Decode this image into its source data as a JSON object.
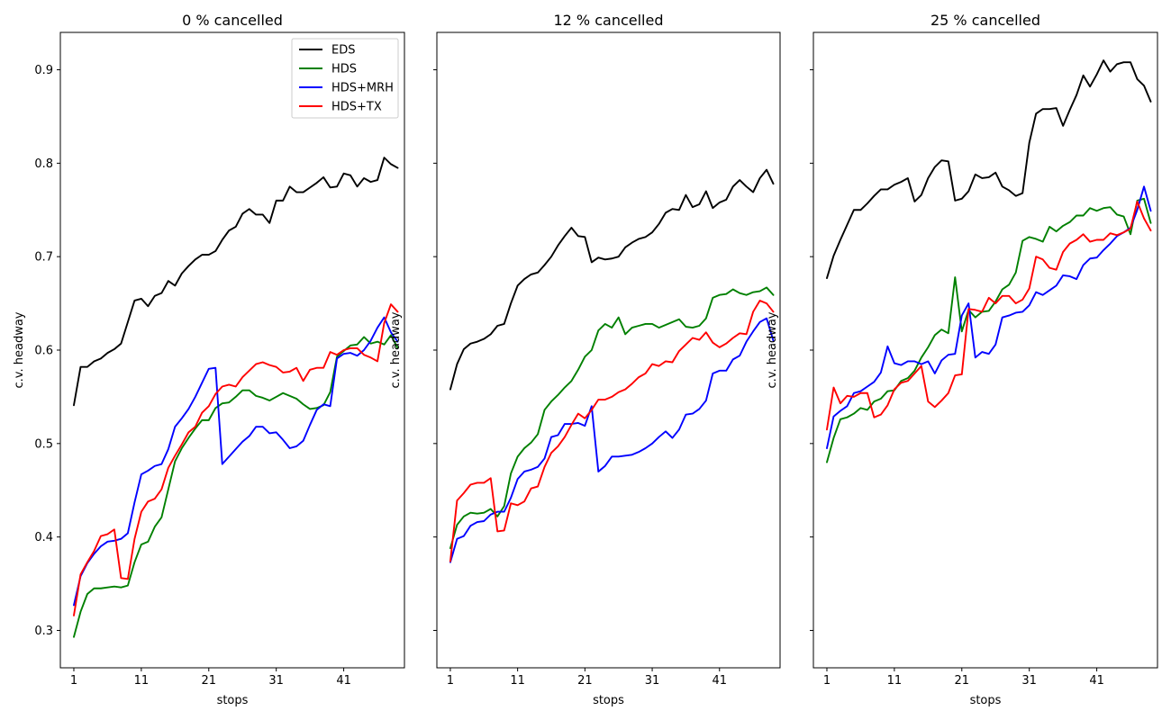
{
  "chart_data": [
    {
      "type": "line",
      "title": "0 % cancelled",
      "xlabel": "stops",
      "ylabel": "c.v. headway",
      "xlim": [
        -1,
        50
      ],
      "ylim": [
        0.26,
        0.94
      ],
      "xticks": [
        1,
        11,
        21,
        31,
        41
      ],
      "yticks": [
        0.3,
        0.4,
        0.5,
        0.6,
        0.7,
        0.8,
        0.9
      ],
      "ytick_labels": [
        "0.3",
        "0.4",
        "0.5",
        "0.6",
        "0.7",
        "0.8",
        "0.9"
      ],
      "legend": {
        "position": "top-right"
      },
      "series": [
        {
          "name": "EDS",
          "color": "#000000",
          "values": [
            0.541,
            0.582,
            0.582,
            0.588,
            0.591,
            0.597,
            0.601,
            0.607,
            0.63,
            0.653,
            0.655,
            0.647,
            0.658,
            0.661,
            0.674,
            0.669,
            0.682,
            0.69,
            0.697,
            0.702,
            0.702,
            0.706,
            0.718,
            0.728,
            0.732,
            0.746,
            0.751,
            0.745,
            0.745,
            0.736,
            0.76,
            0.76,
            0.775,
            0.769,
            0.769,
            0.774,
            0.779,
            0.785,
            0.774,
            0.775,
            0.789,
            0.787,
            0.775,
            0.784,
            0.78,
            0.782,
            0.806,
            0.799,
            0.795
          ]
        },
        {
          "name": "HDS",
          "color": "#008000",
          "values": [
            0.293,
            0.32,
            0.339,
            0.345,
            0.345,
            0.346,
            0.347,
            0.346,
            0.348,
            0.373,
            0.392,
            0.395,
            0.411,
            0.421,
            0.451,
            0.481,
            0.495,
            0.506,
            0.516,
            0.525,
            0.525,
            0.538,
            0.543,
            0.544,
            0.55,
            0.557,
            0.557,
            0.551,
            0.549,
            0.546,
            0.55,
            0.554,
            0.551,
            0.548,
            0.542,
            0.537,
            0.538,
            0.541,
            0.555,
            0.593,
            0.599,
            0.605,
            0.606,
            0.614,
            0.607,
            0.609,
            0.606,
            0.616,
            0.602
          ]
        },
        {
          "name": "HDS+MRH",
          "color": "#0000ff",
          "values": [
            0.327,
            0.358,
            0.372,
            0.382,
            0.39,
            0.395,
            0.396,
            0.398,
            0.404,
            0.437,
            0.467,
            0.471,
            0.476,
            0.478,
            0.494,
            0.518,
            0.527,
            0.537,
            0.55,
            0.565,
            0.58,
            0.581,
            0.478,
            0.486,
            0.494,
            0.502,
            0.508,
            0.518,
            0.518,
            0.511,
            0.512,
            0.504,
            0.495,
            0.497,
            0.503,
            0.52,
            0.536,
            0.542,
            0.54,
            0.591,
            0.596,
            0.597,
            0.594,
            0.6,
            0.61,
            0.624,
            0.635,
            0.619,
            0.609
          ]
        },
        {
          "name": "HDS+TX",
          "color": "#ff0000",
          "values": [
            0.316,
            0.36,
            0.373,
            0.385,
            0.401,
            0.403,
            0.408,
            0.356,
            0.355,
            0.398,
            0.427,
            0.438,
            0.441,
            0.451,
            0.474,
            0.487,
            0.499,
            0.512,
            0.518,
            0.533,
            0.54,
            0.553,
            0.561,
            0.563,
            0.561,
            0.571,
            0.578,
            0.585,
            0.587,
            0.584,
            0.582,
            0.576,
            0.577,
            0.581,
            0.567,
            0.579,
            0.581,
            0.581,
            0.598,
            0.595,
            0.6,
            0.602,
            0.602,
            0.595,
            0.592,
            0.588,
            0.629,
            0.649,
            0.641
          ]
        }
      ]
    },
    {
      "type": "line",
      "title": "12 % cancelled",
      "xlabel": "stops",
      "ylabel": "c.v. headway",
      "xlim": [
        -1,
        50
      ],
      "ylim": [
        0.26,
        0.94
      ],
      "xticks": [
        1,
        11,
        21,
        31,
        41
      ],
      "yticks": [
        0.3,
        0.4,
        0.5,
        0.6,
        0.7,
        0.8,
        0.9
      ],
      "ytick_labels": [],
      "series": [
        {
          "name": "EDS",
          "color": "#000000",
          "values": [
            0.558,
            0.585,
            0.601,
            0.607,
            0.609,
            0.612,
            0.617,
            0.626,
            0.628,
            0.65,
            0.669,
            0.676,
            0.681,
            0.683,
            0.691,
            0.7,
            0.712,
            0.722,
            0.731,
            0.722,
            0.721,
            0.694,
            0.699,
            0.697,
            0.698,
            0.7,
            0.71,
            0.715,
            0.719,
            0.721,
            0.726,
            0.735,
            0.747,
            0.751,
            0.75,
            0.766,
            0.753,
            0.756,
            0.77,
            0.752,
            0.758,
            0.761,
            0.775,
            0.782,
            0.775,
            0.769,
            0.784,
            0.793,
            0.778
          ]
        },
        {
          "name": "HDS",
          "color": "#008000",
          "values": [
            0.388,
            0.413,
            0.422,
            0.426,
            0.425,
            0.426,
            0.43,
            0.422,
            0.433,
            0.468,
            0.486,
            0.495,
            0.501,
            0.51,
            0.536,
            0.545,
            0.552,
            0.56,
            0.567,
            0.579,
            0.593,
            0.6,
            0.621,
            0.628,
            0.624,
            0.635,
            0.617,
            0.624,
            0.626,
            0.628,
            0.628,
            0.624,
            0.627,
            0.63,
            0.633,
            0.625,
            0.624,
            0.626,
            0.634,
            0.656,
            0.659,
            0.66,
            0.665,
            0.661,
            0.659,
            0.662,
            0.663,
            0.667,
            0.659
          ]
        },
        {
          "name": "HDS+MRH",
          "color": "#0000ff",
          "values": [
            0.373,
            0.398,
            0.401,
            0.412,
            0.416,
            0.417,
            0.424,
            0.427,
            0.427,
            0.442,
            0.462,
            0.47,
            0.472,
            0.475,
            0.484,
            0.507,
            0.509,
            0.521,
            0.521,
            0.522,
            0.519,
            0.54,
            0.47,
            0.476,
            0.486,
            0.486,
            0.487,
            0.488,
            0.491,
            0.495,
            0.5,
            0.507,
            0.513,
            0.506,
            0.515,
            0.531,
            0.532,
            0.537,
            0.546,
            0.575,
            0.578,
            0.578,
            0.59,
            0.594,
            0.609,
            0.62,
            0.63,
            0.634,
            0.61
          ]
        },
        {
          "name": "HDS+TX",
          "color": "#ff0000",
          "values": [
            0.374,
            0.439,
            0.447,
            0.456,
            0.458,
            0.458,
            0.463,
            0.406,
            0.407,
            0.436,
            0.434,
            0.438,
            0.452,
            0.454,
            0.475,
            0.49,
            0.497,
            0.507,
            0.52,
            0.532,
            0.527,
            0.536,
            0.547,
            0.547,
            0.55,
            0.555,
            0.558,
            0.564,
            0.571,
            0.575,
            0.585,
            0.583,
            0.588,
            0.587,
            0.599,
            0.606,
            0.613,
            0.611,
            0.619,
            0.608,
            0.603,
            0.607,
            0.613,
            0.618,
            0.617,
            0.641,
            0.653,
            0.65,
            0.641
          ]
        }
      ]
    },
    {
      "type": "line",
      "title": "25 % cancelled",
      "xlabel": "stops",
      "ylabel": "c.v. headway",
      "xlim": [
        -1,
        50
      ],
      "ylim": [
        0.26,
        0.94
      ],
      "xticks": [
        1,
        11,
        21,
        31,
        41
      ],
      "yticks": [
        0.3,
        0.4,
        0.5,
        0.6,
        0.7,
        0.8,
        0.9
      ],
      "ytick_labels": [],
      "series": [
        {
          "name": "EDS",
          "color": "#000000",
          "values": [
            0.677,
            0.701,
            0.718,
            0.734,
            0.75,
            0.75,
            0.757,
            0.765,
            0.772,
            0.772,
            0.777,
            0.78,
            0.784,
            0.759,
            0.766,
            0.784,
            0.796,
            0.803,
            0.802,
            0.76,
            0.762,
            0.77,
            0.788,
            0.784,
            0.785,
            0.79,
            0.775,
            0.771,
            0.765,
            0.768,
            0.822,
            0.853,
            0.858,
            0.858,
            0.859,
            0.84,
            0.857,
            0.873,
            0.894,
            0.882,
            0.895,
            0.91,
            0.898,
            0.906,
            0.908,
            0.908,
            0.89,
            0.883,
            0.866
          ]
        },
        {
          "name": "HDS",
          "color": "#008000",
          "values": [
            0.48,
            0.506,
            0.526,
            0.528,
            0.532,
            0.538,
            0.536,
            0.545,
            0.548,
            0.556,
            0.557,
            0.567,
            0.57,
            0.578,
            0.592,
            0.603,
            0.616,
            0.622,
            0.618,
            0.678,
            0.62,
            0.643,
            0.635,
            0.641,
            0.642,
            0.652,
            0.665,
            0.67,
            0.683,
            0.717,
            0.721,
            0.719,
            0.716,
            0.732,
            0.727,
            0.733,
            0.737,
            0.744,
            0.744,
            0.752,
            0.749,
            0.752,
            0.753,
            0.745,
            0.743,
            0.724,
            0.76,
            0.762,
            0.736
          ]
        },
        {
          "name": "HDS+MRH",
          "color": "#0000ff",
          "values": [
            0.495,
            0.529,
            0.535,
            0.54,
            0.554,
            0.556,
            0.561,
            0.566,
            0.576,
            0.604,
            0.586,
            0.584,
            0.588,
            0.588,
            0.585,
            0.588,
            0.575,
            0.589,
            0.595,
            0.596,
            0.637,
            0.65,
            0.592,
            0.598,
            0.596,
            0.606,
            0.635,
            0.637,
            0.64,
            0.641,
            0.648,
            0.662,
            0.659,
            0.664,
            0.669,
            0.68,
            0.679,
            0.676,
            0.691,
            0.698,
            0.699,
            0.707,
            0.714,
            0.722,
            0.726,
            0.731,
            0.75,
            0.775,
            0.749
          ]
        },
        {
          "name": "HDS+TX",
          "color": "#ff0000",
          "values": [
            0.515,
            0.56,
            0.543,
            0.551,
            0.55,
            0.554,
            0.554,
            0.528,
            0.531,
            0.541,
            0.558,
            0.565,
            0.567,
            0.575,
            0.583,
            0.545,
            0.539,
            0.546,
            0.554,
            0.573,
            0.574,
            0.644,
            0.643,
            0.641,
            0.656,
            0.65,
            0.658,
            0.658,
            0.65,
            0.654,
            0.666,
            0.7,
            0.697,
            0.688,
            0.686,
            0.705,
            0.714,
            0.718,
            0.724,
            0.716,
            0.718,
            0.718,
            0.725,
            0.723,
            0.726,
            0.73,
            0.759,
            0.741,
            0.728
          ]
        }
      ]
    }
  ]
}
